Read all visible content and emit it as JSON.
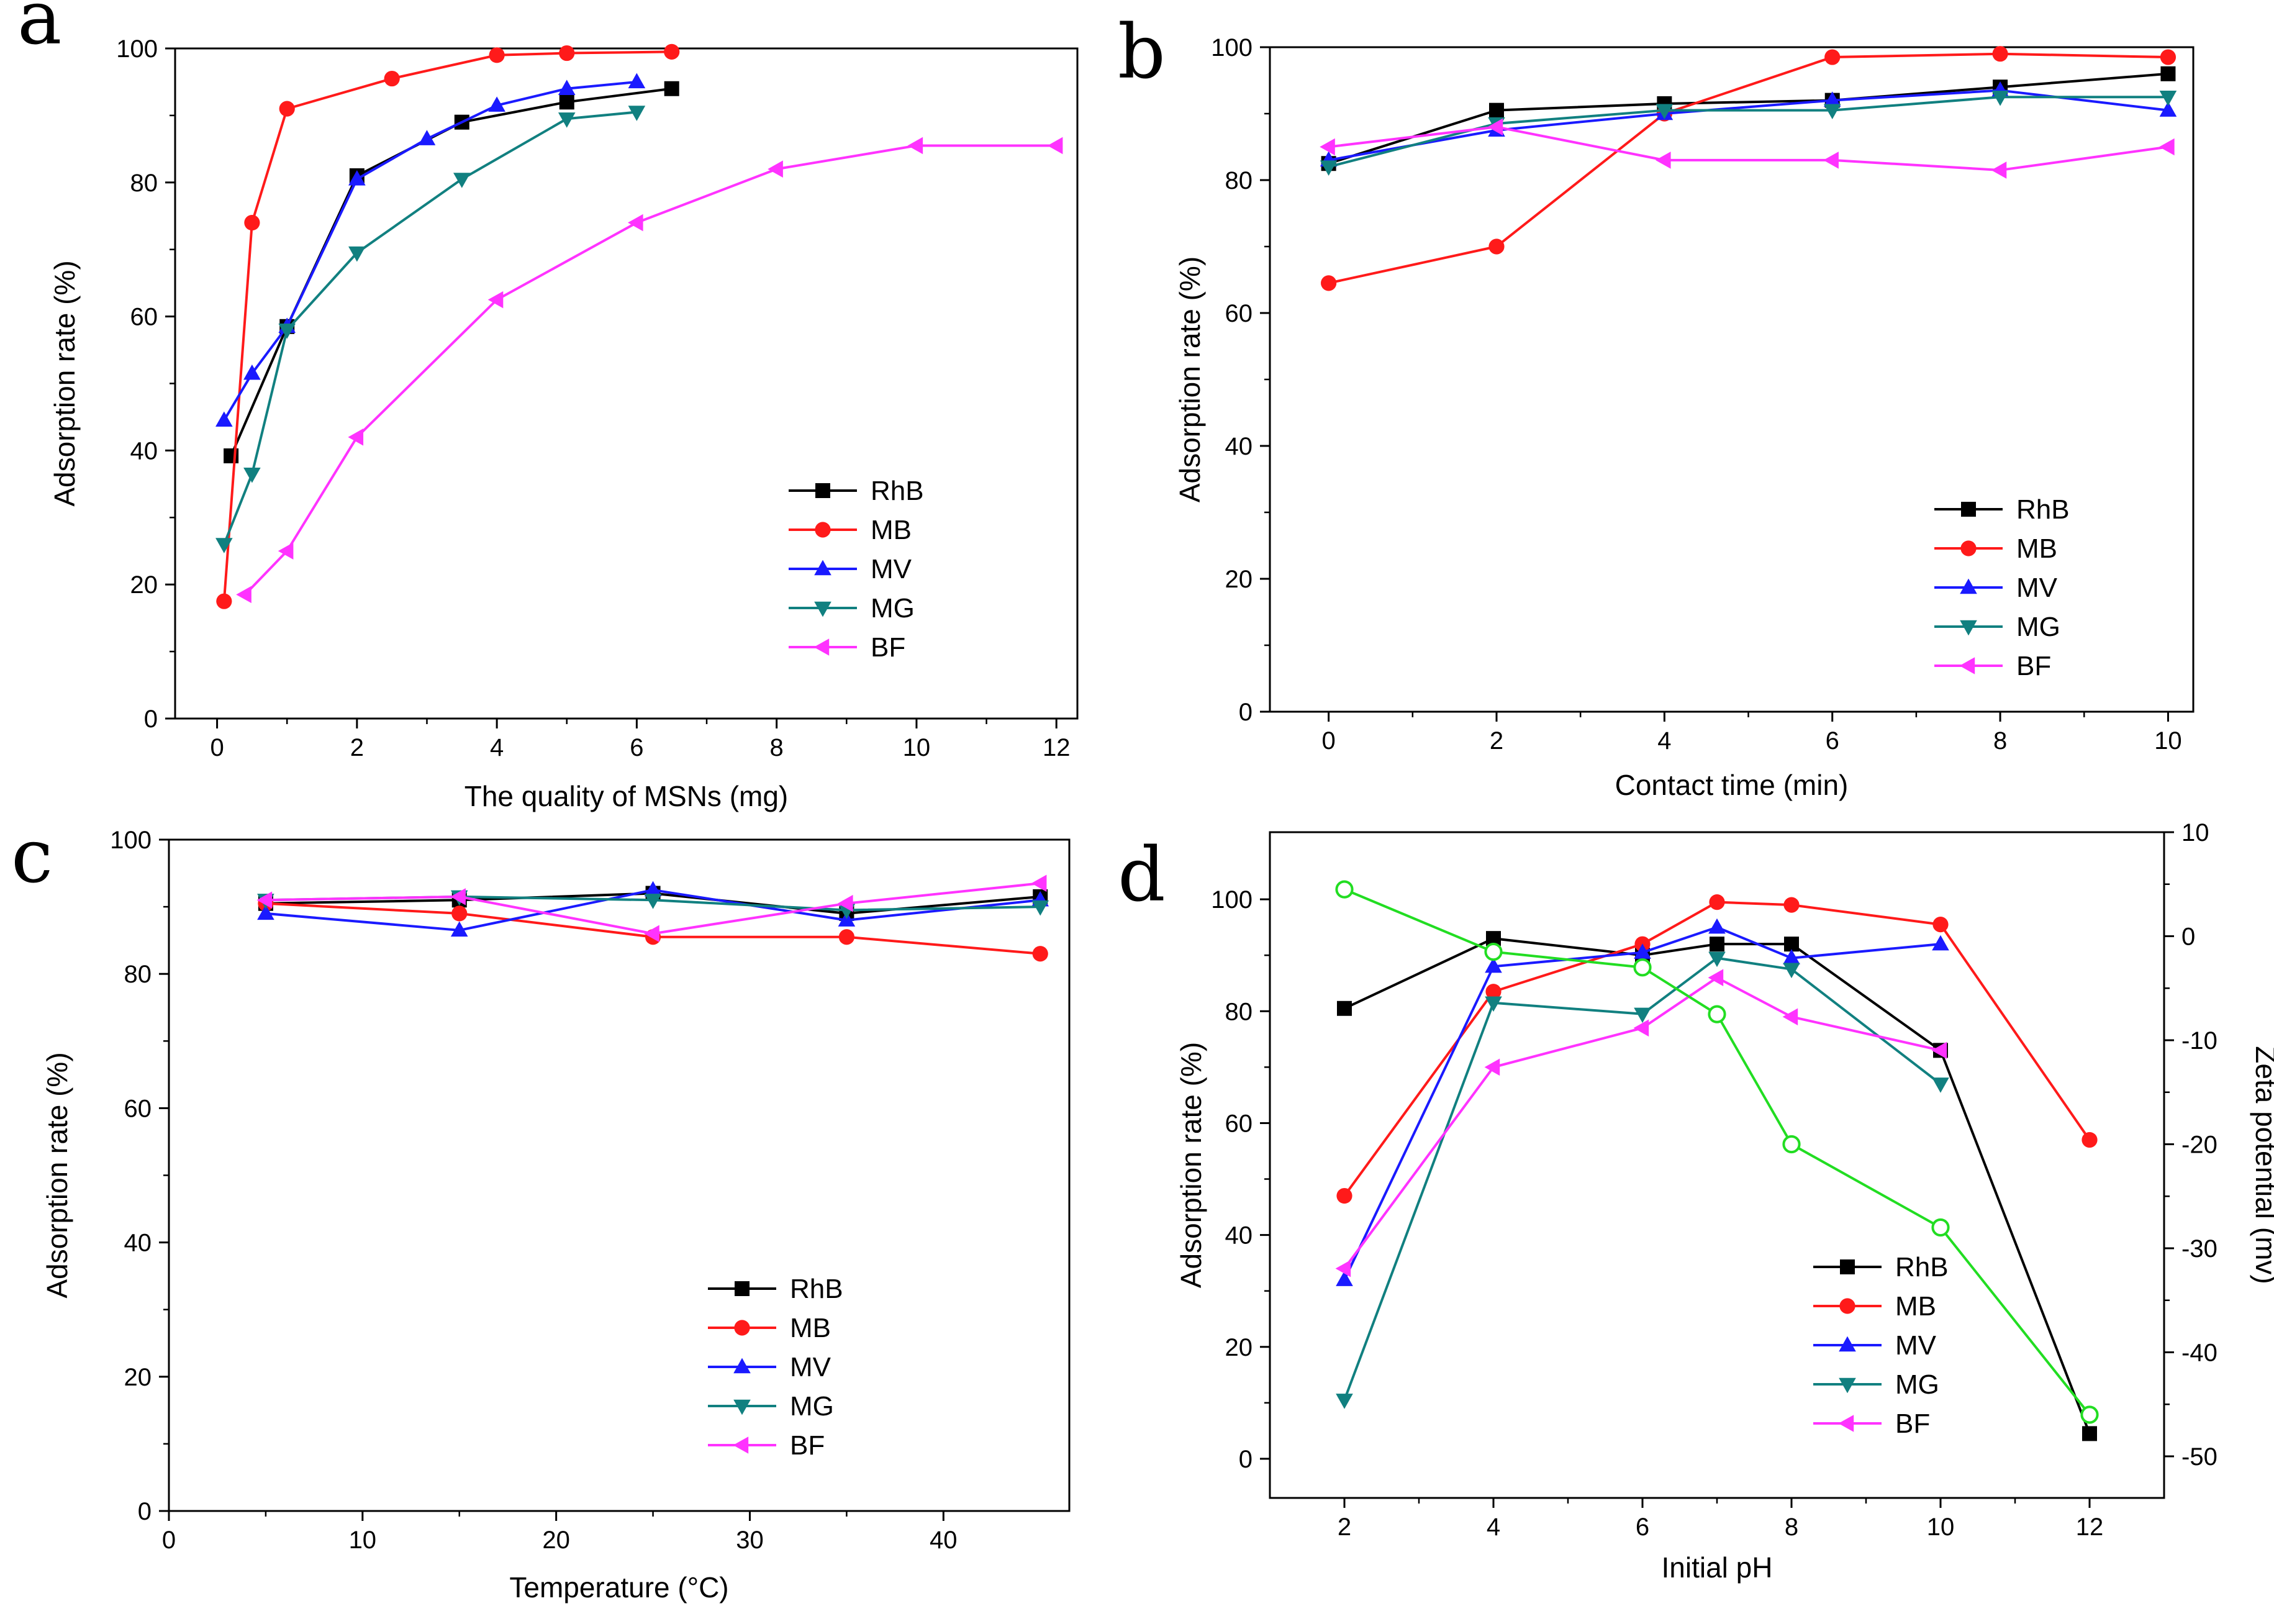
{
  "colors": {
    "RhB": "#000000",
    "MB": "#ff1a1a",
    "MV": "#1a1aff",
    "MG": "#118080",
    "BF": "#ff33ff",
    "Zeta": "#22dd22"
  },
  "chart_data": [
    {
      "panel": "a",
      "type": "line",
      "title": "",
      "xlabel": "The quality of MSNs (mg)",
      "ylabel": "Adsorption rate (%)",
      "xlim": [
        -0.6,
        12.3
      ],
      "ylim": [
        0,
        100
      ],
      "xticks": [
        0,
        2,
        4,
        6,
        8,
        10,
        12
      ],
      "yticks": [
        0,
        20,
        40,
        60,
        80,
        100
      ],
      "legend": [
        "RhB",
        "MB",
        "MV",
        "MG",
        "BF"
      ],
      "series": [
        {
          "name": "RhB",
          "marker": "square",
          "x": [
            0.2,
            1,
            2,
            3.5,
            5,
            6.5
          ],
          "values": [
            39.2,
            58.5,
            81,
            89,
            92,
            94
          ]
        },
        {
          "name": "MB",
          "marker": "circle",
          "x": [
            0.1,
            0.5,
            1,
            2.5,
            4,
            5,
            6.5
          ],
          "values": [
            17.5,
            74,
            91,
            95.5,
            99,
            99.3,
            99.5
          ]
        },
        {
          "name": "MV",
          "marker": "triangle-up",
          "x": [
            0.1,
            0.5,
            1,
            2,
            3,
            4,
            5,
            6
          ],
          "values": [
            44.5,
            51.5,
            58.5,
            80.5,
            86.5,
            91.5,
            94,
            95
          ]
        },
        {
          "name": "MG",
          "marker": "triangle-down",
          "x": [
            0.1,
            0.5,
            1,
            2,
            3.5,
            5,
            6
          ],
          "values": [
            26,
            36.5,
            58,
            69.5,
            80.5,
            89.5,
            90.5
          ]
        },
        {
          "name": "BF",
          "marker": "triangle-left",
          "x": [
            0.4,
            1,
            2,
            4,
            6,
            8,
            10,
            12
          ],
          "values": [
            18.5,
            25,
            42,
            62.5,
            74,
            82,
            85.5,
            85.5
          ]
        }
      ]
    },
    {
      "panel": "b",
      "type": "line",
      "title": "",
      "xlabel": "Contact time (min)",
      "ylabel": "Adsorption rate (%)",
      "xlim": [
        -0.7,
        10.3
      ],
      "ylim": [
        0,
        100
      ],
      "xticks": [
        0,
        2,
        4,
        6,
        8,
        10
      ],
      "yticks": [
        0,
        20,
        40,
        60,
        80,
        100
      ],
      "legend": [
        "RhB",
        "MB",
        "MV",
        "MG",
        "BF"
      ],
      "series": [
        {
          "name": "RhB",
          "marker": "square",
          "x": [
            0,
            2,
            4,
            6,
            8,
            10
          ],
          "values": [
            82.5,
            90.5,
            91.5,
            92,
            94,
            96
          ]
        },
        {
          "name": "MB",
          "marker": "circle",
          "x": [
            0,
            2,
            4,
            6,
            8,
            10
          ],
          "values": [
            64.5,
            70,
            90,
            98.5,
            99,
            98.5
          ]
        },
        {
          "name": "MV",
          "marker": "triangle-up",
          "x": [
            0,
            2,
            4,
            6,
            8,
            10
          ],
          "values": [
            83,
            87.5,
            90,
            92,
            93.5,
            90.5
          ]
        },
        {
          "name": "MG",
          "marker": "triangle-down",
          "x": [
            0,
            2,
            4,
            6,
            8,
            10
          ],
          "values": [
            82,
            88.5,
            90.5,
            90.5,
            92.5,
            92.5
          ]
        },
        {
          "name": "BF",
          "marker": "triangle-left",
          "x": [
            0,
            2,
            4,
            6,
            8,
            10
          ],
          "values": [
            85,
            88,
            83,
            83,
            81.5,
            85
          ]
        }
      ]
    },
    {
      "panel": "c",
      "type": "line",
      "title": "",
      "xlabel": "Temperature (°C)",
      "ylabel": "Adsorption rate (%)",
      "xlim": [
        0,
        46.5
      ],
      "ylim": [
        0,
        100
      ],
      "xticks": [
        0,
        10,
        20,
        30,
        40
      ],
      "yticks": [
        0,
        20,
        40,
        60,
        80,
        100
      ],
      "legend": [
        "RhB",
        "MB",
        "MV",
        "MG",
        "BF"
      ],
      "series": [
        {
          "name": "RhB",
          "marker": "square",
          "x": [
            5,
            15,
            25,
            35,
            45
          ],
          "values": [
            90.5,
            91,
            92,
            89,
            91.5
          ]
        },
        {
          "name": "MB",
          "marker": "circle",
          "x": [
            5,
            15,
            25,
            35,
            45
          ],
          "values": [
            90.5,
            89,
            85.5,
            85.5,
            83
          ]
        },
        {
          "name": "MV",
          "marker": "triangle-up",
          "x": [
            5,
            15,
            25,
            35,
            45
          ],
          "values": [
            89,
            86.5,
            92.5,
            88,
            91
          ]
        },
        {
          "name": "MG",
          "marker": "triangle-down",
          "x": [
            5,
            15,
            25,
            35,
            45
          ],
          "values": [
            91,
            91.5,
            91,
            89.5,
            90
          ]
        },
        {
          "name": "BF",
          "marker": "triangle-left",
          "x": [
            5,
            15,
            25,
            35,
            45
          ],
          "values": [
            91,
            91.5,
            86,
            90.5,
            93.5
          ]
        }
      ]
    },
    {
      "panel": "d",
      "type": "line",
      "title": "",
      "xlabel": "Initial pH",
      "ylabel": "Adsorption rate (%)",
      "y2label": "Zeta potential (mv)",
      "xlim": [
        1,
        13
      ],
      "ylim": [
        -7,
        112
      ],
      "y2lim": [
        -54,
        10
      ],
      "xticks": [
        2,
        4,
        6,
        8,
        10,
        12
      ],
      "yticks": [
        0,
        20,
        40,
        60,
        80,
        100
      ],
      "y2ticks": [
        10,
        0,
        -10,
        -20,
        -30,
        -40,
        -50
      ],
      "legend": [
        "RhB",
        "MB",
        "MV",
        "MG",
        "BF"
      ],
      "series": [
        {
          "name": "RhB",
          "marker": "square",
          "x": [
            2,
            4,
            6,
            7,
            8,
            10,
            12
          ],
          "values": [
            80.5,
            93,
            90,
            92,
            92,
            73,
            4.5
          ]
        },
        {
          "name": "MB",
          "marker": "circle",
          "x": [
            2,
            4,
            6,
            7,
            8,
            10,
            12
          ],
          "values": [
            47,
            83.5,
            92,
            99.5,
            99,
            95.5,
            57
          ]
        },
        {
          "name": "MV",
          "marker": "triangle-up",
          "x": [
            2,
            4,
            6,
            7,
            8,
            10
          ],
          "values": [
            32,
            88,
            90.5,
            95,
            89.5,
            92
          ]
        },
        {
          "name": "MG",
          "marker": "triangle-down",
          "x": [
            2,
            4,
            6,
            7,
            8,
            10
          ],
          "values": [
            10.5,
            81.5,
            79.5,
            89.5,
            87.5,
            67
          ]
        },
        {
          "name": "BF",
          "marker": "triangle-left",
          "x": [
            2,
            4,
            6,
            7,
            8,
            10
          ],
          "values": [
            34,
            70,
            77,
            86,
            79,
            73
          ]
        },
        {
          "name": "Zeta potential",
          "axis": "y2",
          "marker": "open-circle",
          "x": [
            2,
            4,
            6,
            7,
            8,
            10,
            12
          ],
          "values": [
            4.5,
            -1.5,
            -3,
            -7.5,
            -20,
            -28,
            -46
          ]
        }
      ]
    }
  ]
}
